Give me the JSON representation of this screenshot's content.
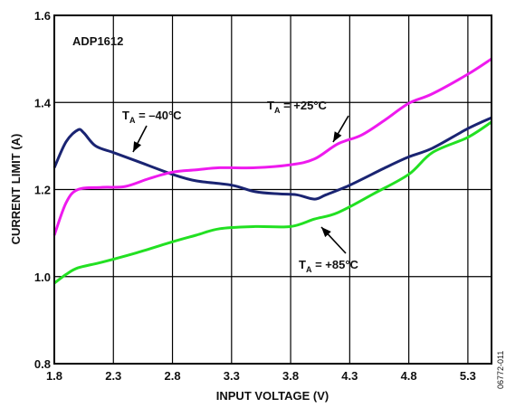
{
  "chart_data": {
    "type": "line",
    "title": "ADP1612",
    "xlabel": "INPUT VOLTAGE (V)",
    "ylabel": "CURRENT LIMIT (A)",
    "xlim": [
      1.8,
      5.5
    ],
    "ylim": [
      0.8,
      1.6
    ],
    "xticks": [
      1.8,
      2.3,
      2.8,
      3.3,
      3.8,
      4.3,
      4.8,
      5.3
    ],
    "xtick_labels": [
      "1.8",
      "2.3",
      "2.8",
      "3.3",
      "3.8",
      "4.3",
      "4.8",
      "5.3"
    ],
    "yticks": [
      0.8,
      1.0,
      1.2,
      1.4,
      1.6
    ],
    "ytick_labels": [
      "0.8",
      "1.0",
      "1.2",
      "1.4",
      "1.6"
    ],
    "grid": true,
    "series": [
      {
        "color": "#1a2472",
        "x": [
          1.8,
          1.9,
          2.0,
          2.05,
          2.15,
          2.3,
          2.5,
          2.8,
          3.0,
          3.3,
          3.5,
          3.7,
          3.85,
          4.0,
          4.1,
          4.3,
          4.6,
          4.8,
          5.0,
          5.3,
          5.5
        ],
        "y": [
          1.25,
          1.31,
          1.337,
          1.33,
          1.3,
          1.285,
          1.265,
          1.235,
          1.22,
          1.21,
          1.195,
          1.19,
          1.188,
          1.178,
          1.188,
          1.21,
          1.25,
          1.275,
          1.295,
          1.34,
          1.365
        ]
      },
      {
        "color": "#ee1aee",
        "x": [
          1.8,
          1.9,
          2.0,
          2.2,
          2.4,
          2.6,
          2.8,
          3.0,
          3.2,
          3.5,
          3.8,
          4.0,
          4.2,
          4.4,
          4.6,
          4.8,
          5.0,
          5.3,
          5.5
        ],
        "y": [
          1.095,
          1.17,
          1.2,
          1.205,
          1.207,
          1.225,
          1.24,
          1.245,
          1.25,
          1.25,
          1.257,
          1.27,
          1.305,
          1.325,
          1.36,
          1.398,
          1.42,
          1.465,
          1.5
        ]
      },
      {
        "color": "#22e022",
        "x": [
          1.8,
          1.9,
          2.0,
          2.2,
          2.5,
          2.8,
          3.0,
          3.2,
          3.5,
          3.8,
          4.0,
          4.2,
          4.5,
          4.8,
          5.0,
          5.3,
          5.5
        ],
        "y": [
          0.985,
          1.005,
          1.02,
          1.033,
          1.055,
          1.08,
          1.095,
          1.11,
          1.115,
          1.115,
          1.132,
          1.147,
          1.19,
          1.235,
          1.285,
          1.32,
          1.355
        ]
      }
    ],
    "annotations": [
      {
        "main": "T",
        "sub": "A",
        "rest": " = –40°C"
      },
      {
        "main": "T",
        "sub": "A",
        "rest": " = +25°C"
      },
      {
        "main": "T",
        "sub": "A",
        "rest": " = +85°C"
      }
    ],
    "figure_id": "06772-011"
  }
}
